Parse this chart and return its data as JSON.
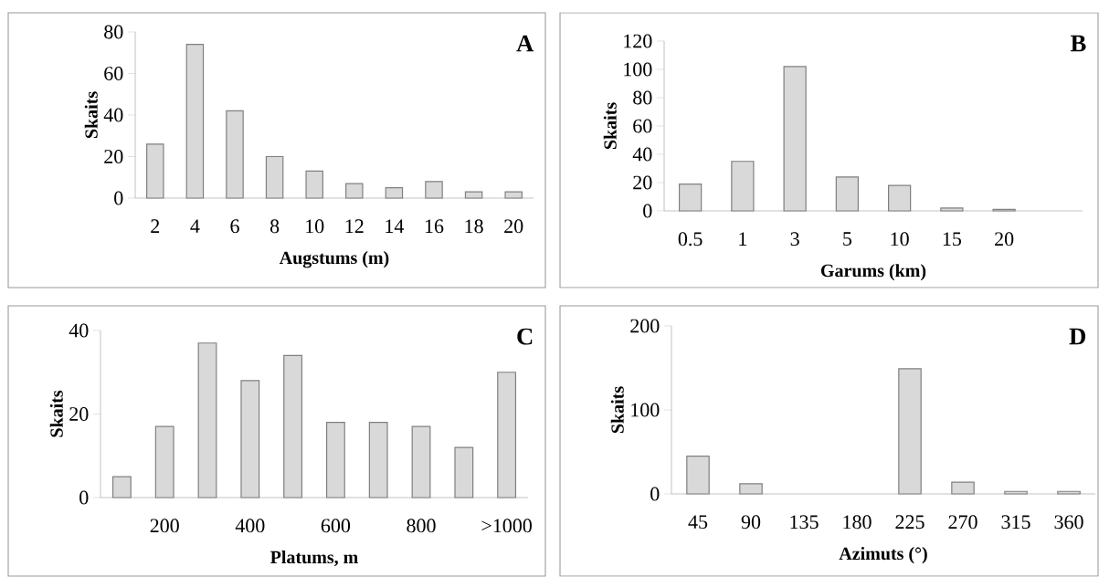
{
  "chart_data": [
    {
      "type": "bar",
      "xlabel": "Augstums (m)",
      "ylabel": "Skaits",
      "annotations": [
        "A"
      ],
      "categories": [
        "2",
        "4",
        "6",
        "8",
        "10",
        "12",
        "14",
        "16",
        "18",
        "20"
      ],
      "values": [
        26,
        74,
        42,
        20,
        13,
        7,
        5,
        8,
        3,
        3
      ],
      "color": "#d9d9d9",
      "ylim": [
        0,
        80
      ],
      "yticks": [
        0,
        20,
        40,
        60,
        80
      ]
    },
    {
      "type": "bar",
      "xlabel": "Garums (km)",
      "ylabel": "Skaits",
      "annotations": [
        "B"
      ],
      "categories": [
        "0.5",
        "1",
        "3",
        "5",
        "10",
        "15",
        "20",
        null
      ],
      "values": [
        19,
        35,
        102,
        24,
        18,
        2,
        1,
        null
      ],
      "color": "#d9d9d9",
      "ylim": [
        0,
        120
      ],
      "yticks": [
        0,
        20,
        40,
        60,
        80,
        100,
        120
      ]
    },
    {
      "type": "bar",
      "xlabel": "Platums, m",
      "ylabel": "Skaits",
      "annotations": [
        "C"
      ],
      "categories": [
        null,
        "200",
        null,
        "400",
        null,
        "600",
        null,
        "800",
        null,
        ">1000"
      ],
      "values": [
        5,
        17,
        37,
        28,
        34,
        18,
        18,
        17,
        12,
        30
      ],
      "color": "#d9d9d9",
      "ylim": [
        0,
        40
      ],
      "yticks": [
        0,
        20,
        40
      ]
    },
    {
      "type": "bar",
      "xlabel": "Azimuts (°)",
      "ylabel": "Skaits",
      "annotations": [
        "D"
      ],
      "categories": [
        "45",
        "90",
        "135",
        "180",
        "225",
        "270",
        "315",
        "360"
      ],
      "values": [
        45,
        12,
        0,
        0,
        149,
        14,
        3,
        3
      ],
      "color": "#d9d9d9",
      "ylim": [
        0,
        200
      ],
      "yticks": [
        0,
        100,
        200
      ]
    }
  ]
}
